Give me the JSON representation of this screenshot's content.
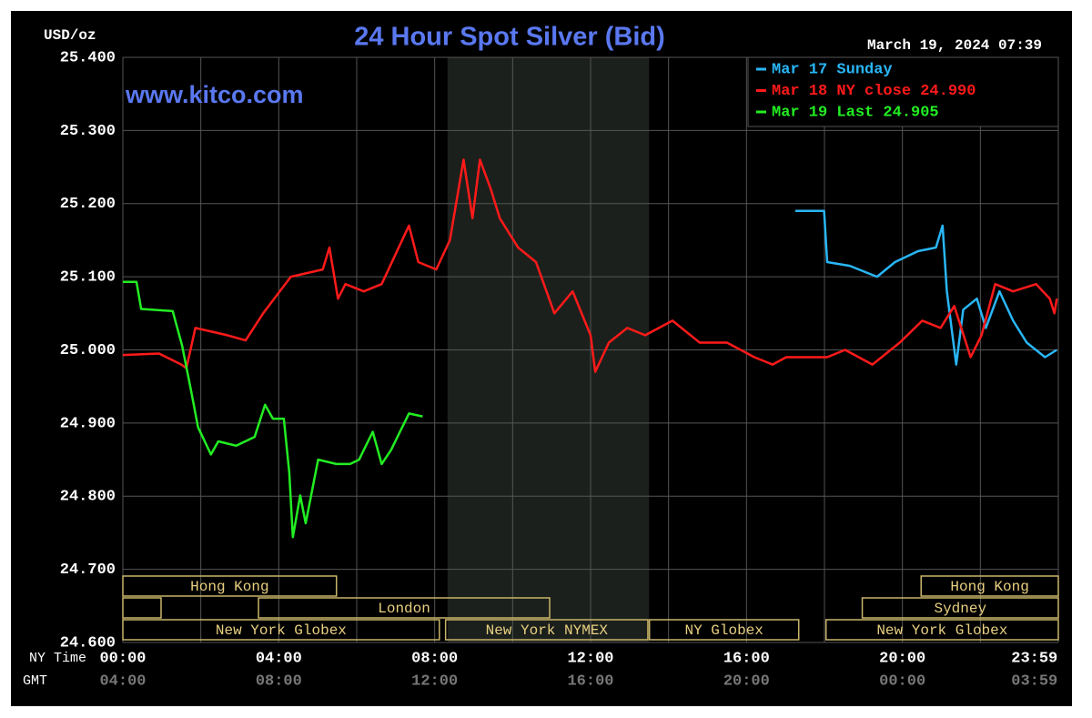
{
  "chart_data": {
    "type": "line",
    "title": "24 Hour Spot Silver (Bid)",
    "y_label": "USD/oz",
    "timestamp": "March 19, 2024 07:39",
    "watermark": "www.kitco.com",
    "x_label": "NY Time",
    "x2_label": "GMT",
    "xlim": [
      0,
      24
    ],
    "xticks": [
      {
        "value": 0,
        "label": "00:00"
      },
      {
        "value": 4,
        "label": "04:00"
      },
      {
        "value": 8,
        "label": "08:00"
      },
      {
        "value": 12,
        "label": "12:00"
      },
      {
        "value": 16,
        "label": "16:00"
      },
      {
        "value": 20,
        "label": "20:00"
      },
      {
        "value": 23.983,
        "label": "23:59"
      }
    ],
    "x2_tick_labels": [
      "04:00",
      "08:00",
      "12:00",
      "16:00",
      "20:00",
      "00:00",
      "03:59"
    ],
    "x_grid": [
      0,
      2,
      4,
      6,
      8,
      10,
      12,
      14,
      16,
      18,
      20,
      22,
      24
    ],
    "ylim": [
      24.6,
      25.4
    ],
    "yticks": [
      {
        "value": 25.4,
        "label": "25.400"
      },
      {
        "value": 25.3,
        "label": "25.300"
      },
      {
        "value": 25.2,
        "label": "25.200"
      },
      {
        "value": 25.1,
        "label": "25.100"
      },
      {
        "value": 25.0,
        "label": "25.000"
      },
      {
        "value": 24.9,
        "label": "24.900"
      },
      {
        "value": 24.8,
        "label": "24.800"
      },
      {
        "value": 24.7,
        "label": "24.700"
      },
      {
        "value": 24.6,
        "label": "24.600"
      }
    ],
    "grid": true,
    "legend": "top-right",
    "shaded_range": [
      8.33,
      13.5
    ],
    "series": [
      {
        "name": "Mar 17 Sunday",
        "color": "#29b6f6",
        "x": [
          17.25,
          17.99,
          18.07,
          18.65,
          19.35,
          19.81,
          20.4,
          20.86,
          21.03,
          21.14,
          21.38,
          21.56,
          21.91,
          22.14,
          22.49,
          22.84,
          23.19,
          23.66,
          23.96
        ],
        "values": [
          25.19,
          25.19,
          25.12,
          25.115,
          25.1,
          25.12,
          25.135,
          25.14,
          25.17,
          25.08,
          24.98,
          25.055,
          25.07,
          25.03,
          25.08,
          25.04,
          25.01,
          24.99,
          25.0
        ]
      },
      {
        "name": "Mar 18 NY close 24.990",
        "color": "#ff1a1a",
        "x": [
          0,
          0.93,
          1.5,
          1.63,
          1.86,
          2.68,
          3.15,
          3.6,
          4.31,
          5.13,
          5.3,
          5.52,
          5.71,
          6.18,
          6.64,
          7.34,
          7.58,
          8.04,
          8.39,
          8.74,
          8.97,
          9.16,
          9.44,
          9.67,
          10.14,
          10.6,
          11.07,
          11.54,
          12.0,
          12.12,
          12.47,
          12.94,
          13.4,
          14.1,
          14.8,
          15.5,
          16.2,
          16.67,
          17.02,
          18.07,
          18.53,
          19.23,
          19.93,
          20.51,
          20.98,
          21.33,
          21.75,
          22.03,
          22.38,
          22.84,
          23.43,
          23.78,
          23.9,
          23.96
        ],
        "values": [
          24.993,
          24.995,
          24.98,
          24.975,
          25.03,
          25.02,
          25.013,
          25.05,
          25.1,
          25.11,
          25.14,
          25.07,
          25.09,
          25.08,
          25.09,
          25.17,
          25.12,
          25.11,
          25.15,
          25.26,
          25.18,
          25.26,
          25.22,
          25.18,
          25.14,
          25.12,
          25.05,
          25.08,
          25.02,
          24.97,
          25.01,
          25.03,
          25.02,
          25.04,
          25.01,
          25.01,
          24.99,
          24.98,
          24.99,
          24.99,
          25.0,
          24.98,
          25.01,
          25.04,
          25.03,
          25.06,
          24.99,
          25.02,
          25.09,
          25.08,
          25.09,
          25.07,
          25.05,
          25.07
        ]
      },
      {
        "name": "Mar 19 Last 24.905",
        "color": "#22ee22",
        "x": [
          0,
          0.35,
          0.47,
          1.28,
          1.52,
          1.75,
          1.93,
          2.26,
          2.45,
          2.91,
          3.38,
          3.65,
          3.85,
          4.13,
          4.27,
          4.36,
          4.55,
          4.69,
          5.01,
          5.48,
          5.83,
          6.06,
          6.41,
          6.64,
          6.88,
          7.11,
          7.34,
          7.69
        ],
        "values": [
          25.093,
          25.093,
          25.056,
          25.053,
          25.006,
          24.944,
          24.894,
          24.857,
          24.875,
          24.869,
          24.881,
          24.925,
          24.906,
          24.906,
          24.832,
          24.744,
          24.801,
          24.763,
          24.85,
          24.844,
          24.844,
          24.85,
          24.888,
          24.844,
          24.863,
          24.888,
          24.913,
          24.909
        ]
      }
    ],
    "sessions": [
      {
        "label": "Hong Kong",
        "start": 0,
        "end": 5.48,
        "row": 0
      },
      {
        "start": 0,
        "end": 0.98,
        "row": 1
      },
      {
        "label": "London",
        "start": 3.48,
        "end": 10.95,
        "row": 1
      },
      {
        "label": "New York Globex",
        "start": 0,
        "end": 8.12,
        "row": 2
      },
      {
        "label": "New York NYMEX",
        "start": 8.28,
        "end": 13.47,
        "row": 2
      },
      {
        "label": "NY Globex",
        "start": 13.51,
        "end": 17.34,
        "row": 2
      },
      {
        "label": "New York Globex",
        "start": 18.04,
        "end": 24,
        "row": 2
      },
      {
        "label": "Sydney",
        "start": 18.97,
        "end": 24,
        "row": 1
      },
      {
        "label": "Hong Kong",
        "start": 20.48,
        "end": 24,
        "row": 0
      }
    ]
  }
}
